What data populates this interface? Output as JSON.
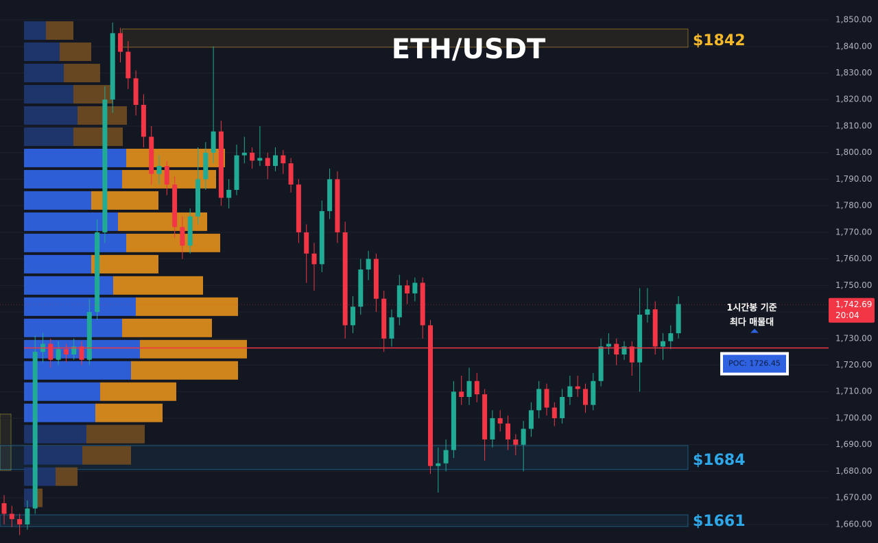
{
  "chart_data": {
    "type": "candlestick",
    "title": "ETH/USDT",
    "ylim": [
      1653,
      1857.5
    ],
    "yticks": [
      {
        "value": 1850,
        "label": "1,850.00"
      },
      {
        "value": 1840,
        "label": "1,840.00"
      },
      {
        "value": 1830,
        "label": "1,830.00"
      },
      {
        "value": 1820,
        "label": "1,820.00"
      },
      {
        "value": 1810,
        "label": "1,810.00"
      },
      {
        "value": 1800,
        "label": "1,800.00"
      },
      {
        "value": 1790,
        "label": "1,790.00"
      },
      {
        "value": 1780,
        "label": "1,780.00"
      },
      {
        "value": 1770,
        "label": "1,770.00"
      },
      {
        "value": 1760,
        "label": "1,760.00"
      },
      {
        "value": 1750,
        "label": "1,750.00"
      },
      {
        "value": 1740,
        "label": "1,740.00"
      },
      {
        "value": 1730,
        "label": "1,730.00"
      },
      {
        "value": 1720,
        "label": "1,720.00"
      },
      {
        "value": 1710,
        "label": "1,710.00"
      },
      {
        "value": 1700,
        "label": "1,700.00"
      },
      {
        "value": 1690,
        "label": "1,690.00"
      },
      {
        "value": 1680,
        "label": "1,680.00"
      },
      {
        "value": 1670,
        "label": "1,670.00"
      },
      {
        "value": 1660,
        "label": "1,660.00"
      }
    ],
    "grid": true,
    "up_color": "#22ab94",
    "down_color": "#f23645",
    "ohlc": [
      [
        1668,
        1671,
        1660,
        1664
      ],
      [
        1664,
        1667,
        1659,
        1662
      ],
      [
        1662,
        1664,
        1656,
        1660
      ],
      [
        1660,
        1669,
        1658,
        1666
      ],
      [
        1666,
        1731,
        1664,
        1725
      ],
      [
        1725,
        1732,
        1721,
        1728
      ],
      [
        1728,
        1730,
        1719,
        1722
      ],
      [
        1722,
        1729,
        1720,
        1726
      ],
      [
        1726,
        1728,
        1721,
        1724
      ],
      [
        1724,
        1730,
        1722,
        1727
      ],
      [
        1727,
        1729,
        1720,
        1722
      ],
      [
        1722,
        1745,
        1720,
        1740
      ],
      [
        1740,
        1775,
        1737,
        1770
      ],
      [
        1770,
        1825,
        1766,
        1820
      ],
      [
        1820,
        1849,
        1815,
        1845
      ],
      [
        1845,
        1847,
        1834,
        1838
      ],
      [
        1838,
        1842,
        1824,
        1828
      ],
      [
        1828,
        1831,
        1814,
        1818
      ],
      [
        1818,
        1822,
        1802,
        1806
      ],
      [
        1806,
        1810,
        1788,
        1792
      ],
      [
        1792,
        1799,
        1788,
        1795
      ],
      [
        1795,
        1797,
        1784,
        1788
      ],
      [
        1788,
        1791,
        1768,
        1772
      ],
      [
        1772,
        1776,
        1760,
        1765
      ],
      [
        1765,
        1779,
        1762,
        1776
      ],
      [
        1776,
        1802,
        1773,
        1790
      ],
      [
        1790,
        1804,
        1786,
        1800
      ],
      [
        1800,
        1840,
        1796,
        1808
      ],
      [
        1808,
        1812,
        1780,
        1783
      ],
      [
        1783,
        1790,
        1779,
        1786
      ],
      [
        1786,
        1803,
        1784,
        1799
      ],
      [
        1799,
        1806,
        1796,
        1800
      ],
      [
        1800,
        1802,
        1794,
        1797
      ],
      [
        1797,
        1810,
        1795,
        1798
      ],
      [
        1798,
        1800,
        1790,
        1795
      ],
      [
        1795,
        1802,
        1793,
        1799
      ],
      [
        1799,
        1801,
        1792,
        1796
      ],
      [
        1796,
        1798,
        1785,
        1788
      ],
      [
        1788,
        1790,
        1766,
        1770
      ],
      [
        1770,
        1773,
        1751,
        1762
      ],
      [
        1762,
        1766,
        1748,
        1758
      ],
      [
        1758,
        1782,
        1755,
        1778
      ],
      [
        1778,
        1794,
        1775,
        1790
      ],
      [
        1790,
        1793,
        1766,
        1770
      ],
      [
        1770,
        1774,
        1730,
        1735
      ],
      [
        1735,
        1746,
        1732,
        1742
      ],
      [
        1742,
        1760,
        1739,
        1756
      ],
      [
        1756,
        1763,
        1752,
        1760
      ],
      [
        1760,
        1762,
        1740,
        1745
      ],
      [
        1745,
        1748,
        1725,
        1730
      ],
      [
        1730,
        1741,
        1727,
        1738
      ],
      [
        1738,
        1754,
        1735,
        1750
      ],
      [
        1750,
        1752,
        1743,
        1747
      ],
      [
        1747,
        1753,
        1744,
        1751
      ],
      [
        1751,
        1753,
        1730,
        1735
      ],
      [
        1735,
        1737,
        1679,
        1682
      ],
      [
        1682,
        1689,
        1672,
        1683
      ],
      [
        1683,
        1692,
        1680,
        1688
      ],
      [
        1688,
        1714,
        1685,
        1710
      ],
      [
        1710,
        1716,
        1705,
        1708
      ],
      [
        1708,
        1719,
        1705,
        1714
      ],
      [
        1714,
        1717,
        1706,
        1709
      ],
      [
        1709,
        1711,
        1684,
        1692
      ],
      [
        1692,
        1703,
        1689,
        1700
      ],
      [
        1700,
        1703,
        1695,
        1698
      ],
      [
        1698,
        1701,
        1688,
        1692
      ],
      [
        1692,
        1694,
        1686,
        1690
      ],
      [
        1690,
        1699,
        1680,
        1696
      ],
      [
        1696,
        1706,
        1693,
        1703
      ],
      [
        1703,
        1714,
        1700,
        1711
      ],
      [
        1711,
        1713,
        1701,
        1704
      ],
      [
        1704,
        1706,
        1697,
        1700
      ],
      [
        1700,
        1711,
        1698,
        1708
      ],
      [
        1708,
        1716,
        1705,
        1712
      ],
      [
        1712,
        1716,
        1708,
        1711
      ],
      [
        1711,
        1713,
        1702,
        1705
      ],
      [
        1705,
        1717,
        1703,
        1714
      ],
      [
        1714,
        1730,
        1712,
        1727
      ],
      [
        1727,
        1732,
        1724,
        1728
      ],
      [
        1728,
        1730,
        1720,
        1724
      ],
      [
        1724,
        1729,
        1722,
        1727
      ],
      [
        1727,
        1729,
        1716,
        1721
      ],
      [
        1721,
        1749,
        1710,
        1739
      ],
      [
        1739,
        1749,
        1736,
        1741
      ],
      [
        1741,
        1744,
        1724,
        1727
      ],
      [
        1727,
        1732,
        1722,
        1729
      ],
      [
        1729,
        1735,
        1726,
        1732
      ],
      [
        1732,
        1746,
        1730,
        1743
      ]
    ],
    "profile": {
      "bins": [
        1666,
        1674,
        1682,
        1690,
        1698,
        1706,
        1714,
        1722,
        1730,
        1738,
        1746,
        1754,
        1762,
        1770,
        1778,
        1786,
        1794,
        1802,
        1810,
        1818,
        1826,
        1834,
        1842,
        1850
      ],
      "buy": [
        15,
        46,
        85,
        91,
        104,
        111,
        156,
        169,
        143,
        163,
        130,
        98,
        149,
        137,
        98,
        143,
        149,
        72,
        78,
        72,
        58,
        52,
        32
      ],
      "sell": [
        12,
        32,
        71,
        85,
        98,
        111,
        156,
        156,
        131,
        149,
        131,
        98,
        137,
        130,
        98,
        137,
        144,
        72,
        72,
        58,
        53,
        46,
        40
      ],
      "xlim": [
        0,
        1173
      ],
      "value_area": [
        1698,
        1802
      ],
      "buy_color": "#2f62e0",
      "sell_color": "#d98a1c",
      "dim_buy_color": "#1f3770",
      "dim_sell_color": "#6a4a22"
    },
    "zones": [
      {
        "label": "$1842",
        "value": 1842,
        "low": 1839.7,
        "high": 1846.6,
        "color": "#f5b82a"
      },
      {
        "label": "$1684",
        "value": 1684,
        "low": 1680.7,
        "high": 1689.7,
        "color": "#2fa8ea"
      },
      {
        "label": "$1661",
        "value": 1661,
        "low": 1659.2,
        "high": 1663.6,
        "color": "#2fa8ea"
      }
    ],
    "poc": {
      "value": 1726.45,
      "label": "POC: 1726.45"
    },
    "annotation": [
      "1시간봉 기준",
      "최다 매물대"
    ],
    "last_price": {
      "value": 1742.69,
      "label": "1,742.69",
      "countdown": "20:04"
    }
  }
}
